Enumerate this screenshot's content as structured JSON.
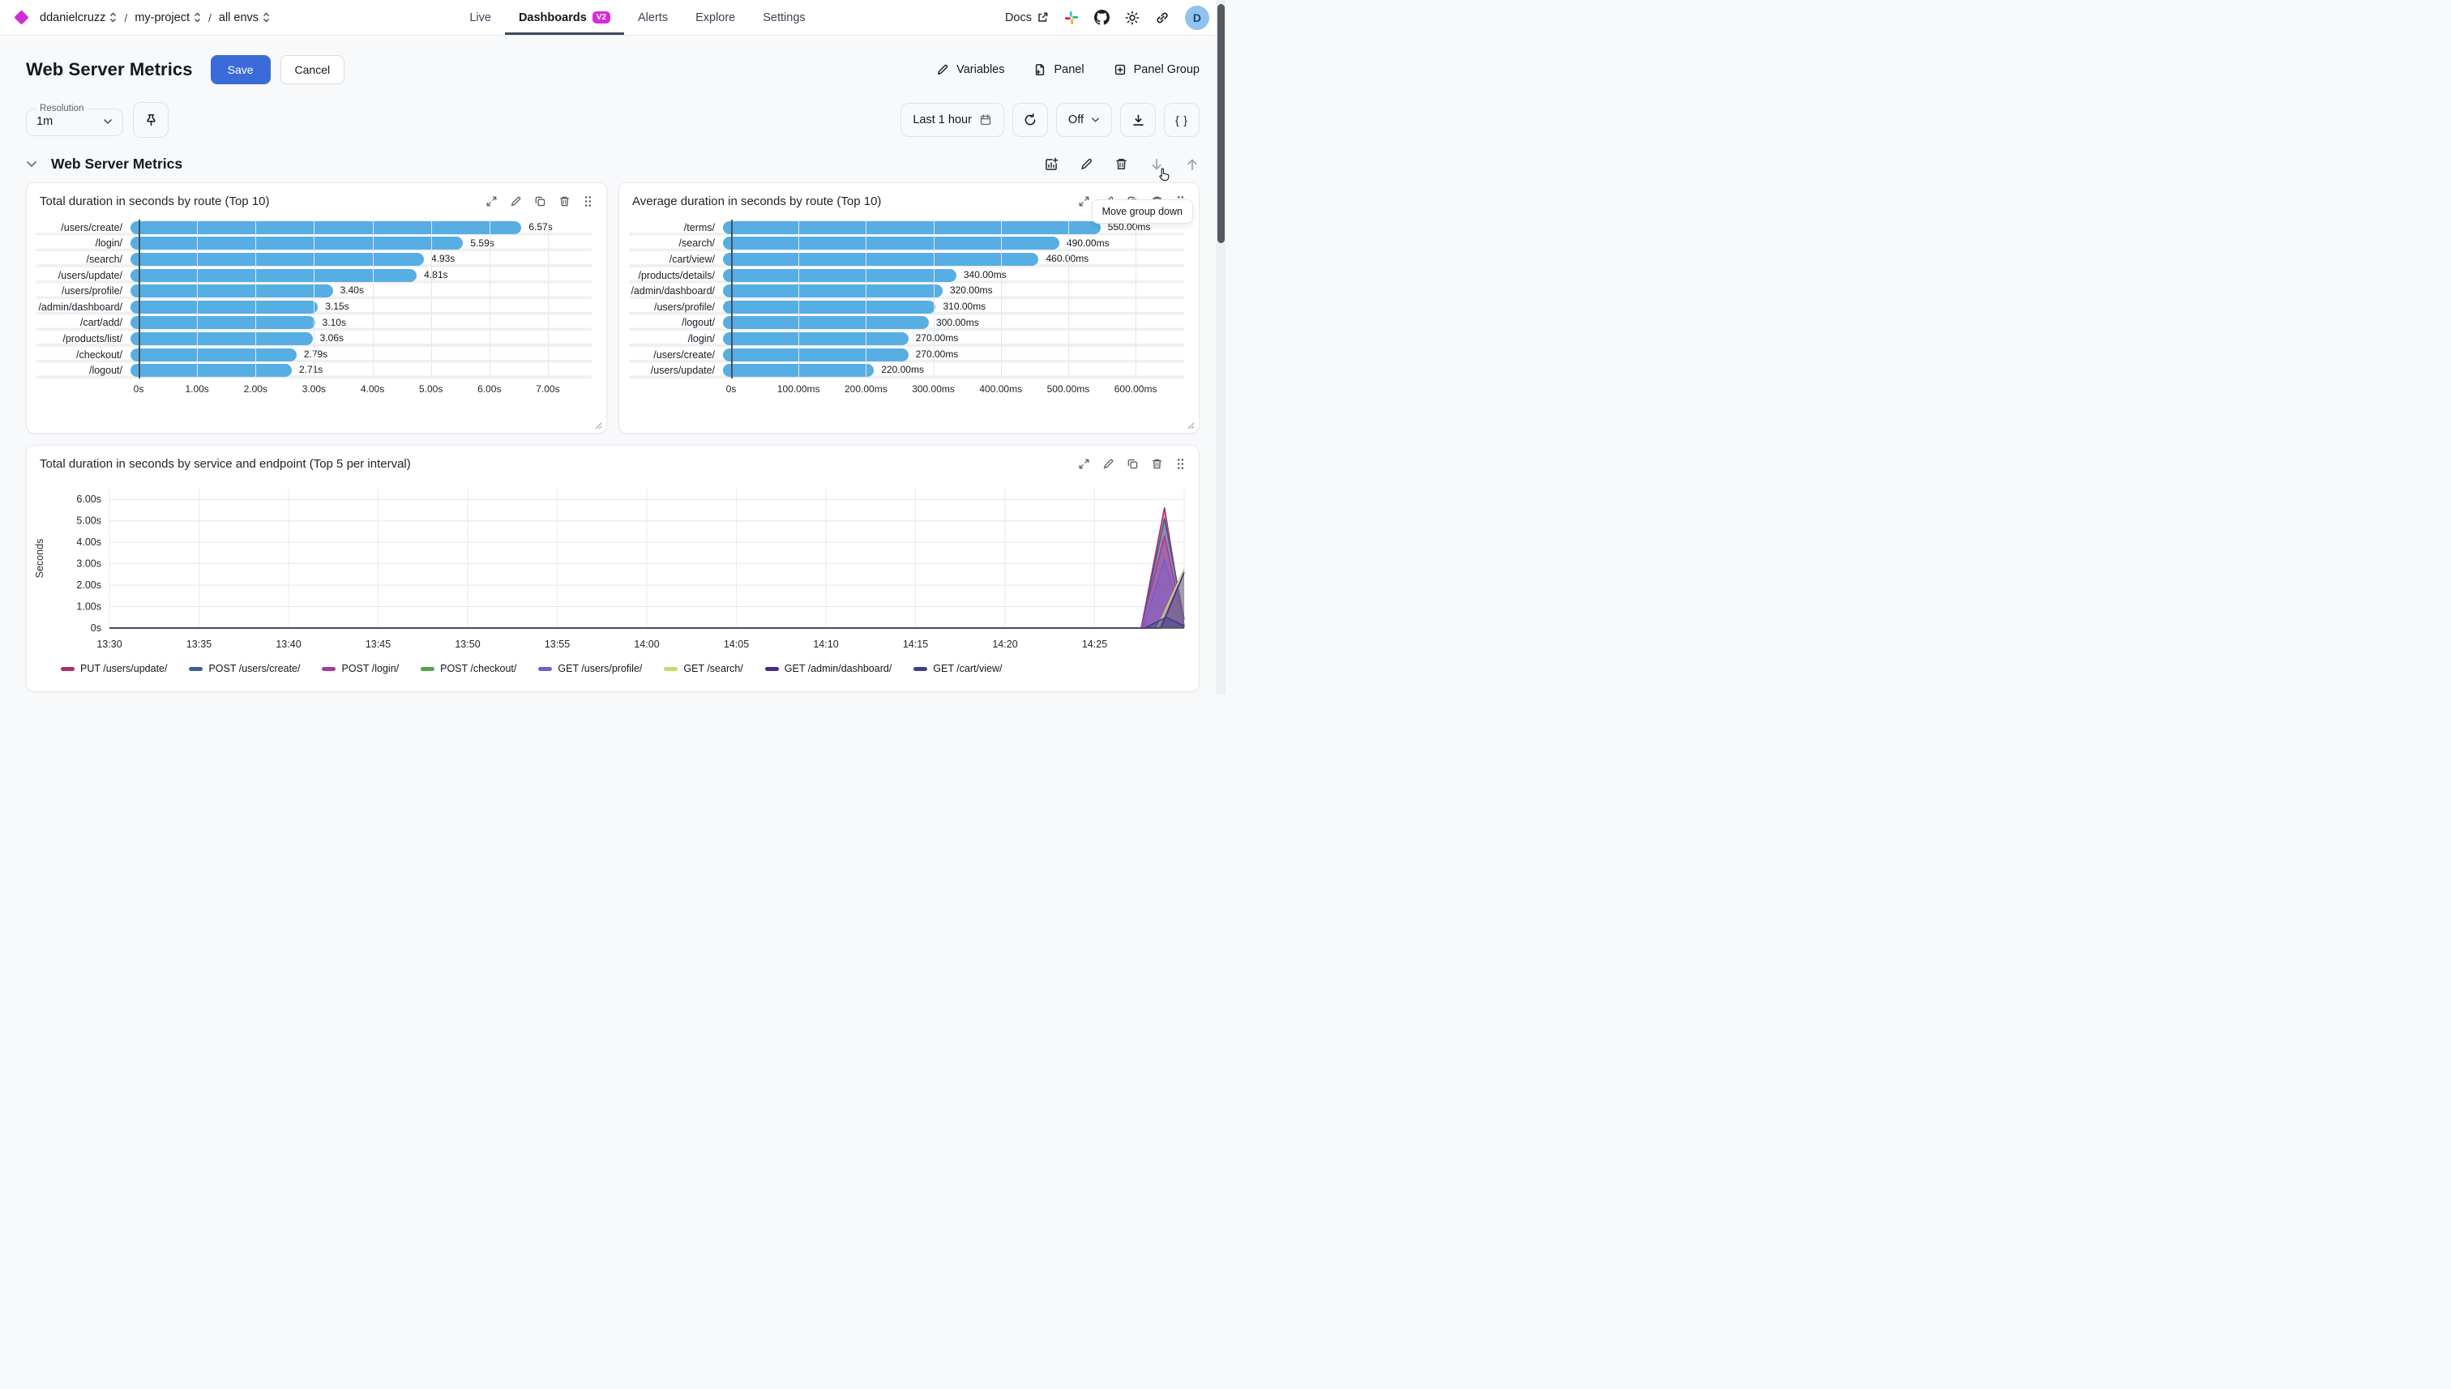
{
  "header": {
    "breadcrumb": {
      "items": [
        "ddanielcruzz",
        "my-project",
        "all envs"
      ],
      "separator": "/"
    },
    "nav": [
      {
        "label": "Live",
        "active": false,
        "badge": null
      },
      {
        "label": "Dashboards",
        "active": true,
        "badge": "V2"
      },
      {
        "label": "Alerts",
        "active": false,
        "badge": null
      },
      {
        "label": "Explore",
        "active": false,
        "badge": null
      },
      {
        "label": "Settings",
        "active": false,
        "badge": null
      }
    ],
    "docs_label": "Docs",
    "icons": [
      "external-link",
      "slack",
      "github",
      "theme-sun",
      "copy-link"
    ],
    "avatar_letter": "D",
    "brand_color": "#ce2fd4",
    "badge_color": "#d92ad9"
  },
  "toolbar": {
    "page_title": "Web Server Metrics",
    "save_label": "Save",
    "cancel_label": "Cancel",
    "variables_label": "Variables",
    "panel_label": "Panel",
    "panel_group_label": "Panel Group",
    "save_color": "#3b6bd9"
  },
  "controls": {
    "resolution_label": "Resolution",
    "resolution_value": "1m",
    "time_range_label": "Last 1 hour",
    "auto_refresh_label": "Off",
    "code_button_label": "{ }",
    "tooltip_text": "Move group down"
  },
  "group": {
    "title": "Web Server Metrics",
    "icons": [
      "add-panel",
      "edit",
      "delete",
      "move-down",
      "move-up"
    ]
  },
  "panel_icons": [
    "expand",
    "edit",
    "duplicate",
    "delete",
    "drag-handle"
  ],
  "chart_data": [
    {
      "type": "bar",
      "orientation": "horizontal",
      "title": "Total duration in seconds by route (Top 10)",
      "categories": [
        "/users/create/",
        "/login/",
        "/search/",
        "/users/update/",
        "/users/profile/",
        "/admin/dashboard/",
        "/cart/add/",
        "/products/list/",
        "/checkout/",
        "/logout/"
      ],
      "values": [
        6.57,
        5.59,
        4.93,
        4.81,
        3.4,
        3.15,
        3.1,
        3.06,
        2.79,
        2.71
      ],
      "value_labels": [
        "6.57s",
        "5.59s",
        "4.93s",
        "4.81s",
        "3.40s",
        "3.15s",
        "3.10s",
        "3.06s",
        "2.79s",
        "2.71s"
      ],
      "xticks": {
        "values": [
          0,
          1,
          2,
          3,
          4,
          5,
          6,
          7
        ],
        "labels": [
          "0s",
          "1.00s",
          "2.00s",
          "3.00s",
          "4.00s",
          "5.00s",
          "6.00s",
          "7.00s"
        ]
      },
      "xlim": [
        0,
        7.75
      ],
      "bar_color": "#57aee3",
      "grid": true
    },
    {
      "type": "bar",
      "orientation": "horizontal",
      "title": "Average duration in seconds by route (Top 10)",
      "categories": [
        "/terms/",
        "/search/",
        "/cart/view/",
        "/products/details/",
        "/admin/dashboard/",
        "/users/profile/",
        "/logout/",
        "/login/",
        "/users/create/",
        "/users/update/"
      ],
      "values": [
        550,
        490,
        460,
        340,
        320,
        310,
        300,
        270,
        270,
        220
      ],
      "value_labels": [
        "550.00ms",
        "490.00ms",
        "460.00ms",
        "340.00ms",
        "320.00ms",
        "310.00ms",
        "300.00ms",
        "270.00ms",
        "270.00ms",
        "220.00ms"
      ],
      "xticks": {
        "values": [
          0,
          100,
          200,
          300,
          400,
          500,
          600
        ],
        "labels": [
          "0s",
          "100.00ms",
          "200.00ms",
          "300.00ms",
          "400.00ms",
          "500.00ms",
          "600.00ms"
        ]
      },
      "xlim": [
        0,
        672
      ],
      "bar_color": "#57aee3",
      "grid": true
    },
    {
      "type": "area",
      "title": "Total duration in seconds by service and endpoint (Top 5 per interval)",
      "ylabel": "Seconds",
      "yticks": {
        "values": [
          0,
          1,
          2,
          3,
          4,
          5,
          6
        ],
        "labels": [
          "0s",
          "1.00s",
          "2.00s",
          "3.00s",
          "4.00s",
          "5.00s",
          "6.00s"
        ]
      },
      "ylim": [
        0,
        6.5
      ],
      "xticks": {
        "labels": [
          "13:30",
          "13:35",
          "13:40",
          "13:45",
          "13:50",
          "13:55",
          "14:00",
          "14:05",
          "14:10",
          "14:15",
          "14:20",
          "14:25"
        ],
        "interval_minutes": 5
      },
      "x_domain_minutes": [
        0,
        60
      ],
      "x_domain_times": [
        "13:30",
        "14:30"
      ],
      "grid": true,
      "legend_position": "bottom",
      "series": [
        {
          "name": "PUT /users/update/",
          "color": "#b02d67",
          "points": [
            [
              0,
              0
            ],
            [
              57.6,
              0
            ],
            [
              58.9,
              5.6
            ],
            [
              60,
              0.05
            ]
          ]
        },
        {
          "name": "POST /users/create/",
          "color": "#3d6191",
          "points": [
            [
              0,
              0
            ],
            [
              57.6,
              0
            ],
            [
              58.9,
              5.1
            ],
            [
              60,
              0.4
            ]
          ]
        },
        {
          "name": "POST /login/",
          "color": "#a63b9c",
          "points": [
            [
              0,
              0
            ],
            [
              57.6,
              0
            ],
            [
              58.9,
              4.3
            ],
            [
              60,
              0.05
            ]
          ]
        },
        {
          "name": "POST /checkout/",
          "color": "#57a14d",
          "points": [
            [
              0,
              0
            ],
            [
              58.0,
              0
            ],
            [
              59.0,
              0.1
            ],
            [
              60,
              0.05
            ]
          ]
        },
        {
          "name": "GET /users/profile/",
          "color": "#7a5ad1",
          "points": [
            [
              0,
              0
            ],
            [
              57.7,
              0
            ],
            [
              58.9,
              3.2
            ],
            [
              60,
              0.1
            ]
          ]
        },
        {
          "name": "GET /search/",
          "color": "#c8d96d",
          "points": [
            [
              0,
              0
            ],
            [
              58.5,
              0
            ],
            [
              60,
              2.75
            ]
          ]
        },
        {
          "name": "GET /admin/dashboard/",
          "color": "#472a8e",
          "points": [
            [
              0,
              0
            ],
            [
              58.7,
              0
            ],
            [
              60,
              2.6
            ]
          ]
        },
        {
          "name": "GET /cart/view/",
          "color": "#3b3e8e",
          "points": [
            [
              0,
              0
            ],
            [
              57.8,
              0
            ],
            [
              59.0,
              0.5
            ],
            [
              60,
              0.1
            ]
          ]
        }
      ]
    }
  ]
}
